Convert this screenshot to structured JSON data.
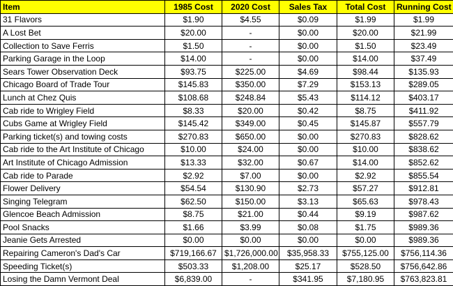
{
  "table": {
    "headers": {
      "item": "Item",
      "cost_1985": "1985 Cost",
      "cost_2020": "2020 Cost",
      "sales_tax": "Sales Tax",
      "total_cost": "Total Cost",
      "running_cost": "Running Cost"
    },
    "header_color": "#ffff00",
    "rows": [
      {
        "item": "31 Flavors",
        "cost_1985": "$1.90",
        "cost_2020": "$4.55",
        "sales_tax": "$0.09",
        "total_cost": "$1.99",
        "running_cost": "$1.99"
      },
      {
        "item": "A Lost Bet",
        "cost_1985": "$20.00",
        "cost_2020": "-",
        "sales_tax": "$0.00",
        "total_cost": "$20.00",
        "running_cost": "$21.99"
      },
      {
        "item": "Collection to Save Ferris",
        "cost_1985": "$1.50",
        "cost_2020": "-",
        "sales_tax": "$0.00",
        "total_cost": "$1.50",
        "running_cost": "$23.49"
      },
      {
        "item": "Parking Garage in the Loop",
        "cost_1985": "$14.00",
        "cost_2020": "-",
        "sales_tax": "$0.00",
        "total_cost": "$14.00",
        "running_cost": "$37.49"
      },
      {
        "item": "Sears Tower Observation Deck",
        "cost_1985": "$93.75",
        "cost_2020": "$225.00",
        "sales_tax": "$4.69",
        "total_cost": "$98.44",
        "running_cost": "$135.93"
      },
      {
        "item": "Chicago Board of Trade Tour",
        "cost_1985": "$145.83",
        "cost_2020": "$350.00",
        "sales_tax": "$7.29",
        "total_cost": "$153.13",
        "running_cost": "$289.05"
      },
      {
        "item": "Lunch at Chez Quis",
        "cost_1985": "$108.68",
        "cost_2020": "$248.84",
        "sales_tax": "$5.43",
        "total_cost": "$114.12",
        "running_cost": "$403.17"
      },
      {
        "item": "Cab ride to Wrigley Field",
        "cost_1985": "$8.33",
        "cost_2020": "$20.00",
        "sales_tax": "$0.42",
        "total_cost": "$8.75",
        "running_cost": "$411.92"
      },
      {
        "item": "Cubs Game at Wrigley Field",
        "cost_1985": "$145.42",
        "cost_2020": "$349.00",
        "sales_tax": "$0.45",
        "total_cost": "$145.87",
        "running_cost": "$557.79"
      },
      {
        "item": "Parking ticket(s) and towing costs",
        "cost_1985": "$270.83",
        "cost_2020": "$650.00",
        "sales_tax": "$0.00",
        "total_cost": "$270.83",
        "running_cost": "$828.62"
      },
      {
        "item": "Cab ride to the Art Institute of Chicago",
        "cost_1985": "$10.00",
        "cost_2020": "$24.00",
        "sales_tax": "$0.00",
        "total_cost": "$10.00",
        "running_cost": "$838.62"
      },
      {
        "item": "Art Institute of Chicago Admission",
        "cost_1985": "$13.33",
        "cost_2020": "$32.00",
        "sales_tax": "$0.67",
        "total_cost": "$14.00",
        "running_cost": "$852.62"
      },
      {
        "item": "Cab ride to Parade",
        "cost_1985": "$2.92",
        "cost_2020": "$7.00",
        "sales_tax": "$0.00",
        "total_cost": "$2.92",
        "running_cost": "$855.54"
      },
      {
        "item": "Flower Delivery",
        "cost_1985": "$54.54",
        "cost_2020": "$130.90",
        "sales_tax": "$2.73",
        "total_cost": "$57.27",
        "running_cost": "$912.81"
      },
      {
        "item": "Singing Telegram",
        "cost_1985": "$62.50",
        "cost_2020": "$150.00",
        "sales_tax": "$3.13",
        "total_cost": "$65.63",
        "running_cost": "$978.43"
      },
      {
        "item": "Glencoe Beach Admission",
        "cost_1985": "$8.75",
        "cost_2020": "$21.00",
        "sales_tax": "$0.44",
        "total_cost": "$9.19",
        "running_cost": "$987.62"
      },
      {
        "item": "Pool Snacks",
        "cost_1985": "$1.66",
        "cost_2020": "$3.99",
        "sales_tax": "$0.08",
        "total_cost": "$1.75",
        "running_cost": "$989.36"
      },
      {
        "item": "Jeanie Gets Arrested",
        "cost_1985": "$0.00",
        "cost_2020": "$0.00",
        "sales_tax": "$0.00",
        "total_cost": "$0.00",
        "running_cost": "$989.36"
      },
      {
        "item": "Repairing Cameron's Dad's Car",
        "cost_1985": "$719,166.67",
        "cost_2020": "$1,726,000.00",
        "sales_tax": "$35,958.33",
        "total_cost": "$755,125.00",
        "running_cost": "$756,114.36"
      },
      {
        "item": "Speeding Ticket(s)",
        "cost_1985": "$503.33",
        "cost_2020": "$1,208.00",
        "sales_tax": "$25.17",
        "total_cost": "$528.50",
        "running_cost": "$756,642.86"
      },
      {
        "item": "Losing the Damn Vermont Deal",
        "cost_1985": "$6,839.00",
        "cost_2020": "-",
        "sales_tax": "$341.95",
        "total_cost": "$7,180.95",
        "running_cost": "$763,823.81"
      }
    ]
  }
}
